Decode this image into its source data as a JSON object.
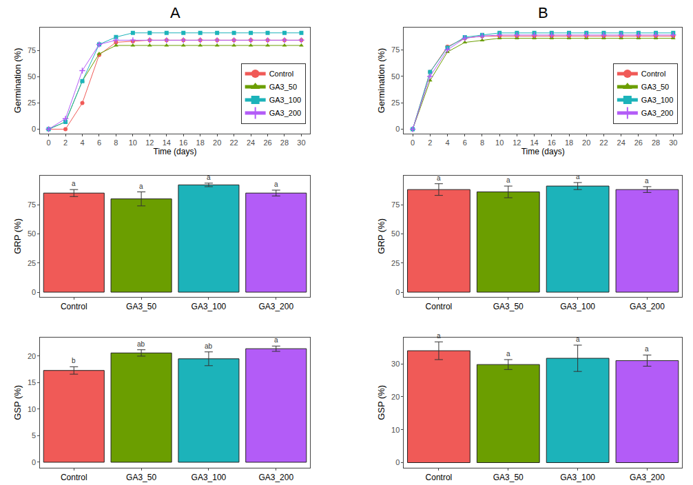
{
  "chart_data": [
    {
      "type": "line",
      "title": "A",
      "x_label": "Time (days)",
      "y_label": "Germination (%)",
      "x": [
        0,
        2,
        4,
        6,
        8,
        10,
        12,
        14,
        16,
        18,
        20,
        22,
        24,
        26,
        28,
        30
      ],
      "xlim": [
        -1,
        31
      ],
      "xticks": [
        0,
        2,
        4,
        6,
        8,
        10,
        12,
        14,
        16,
        18,
        20,
        22,
        24,
        26,
        28,
        30
      ],
      "ylim": [
        -4,
        97
      ],
      "yticks": [
        0,
        25,
        50,
        75
      ],
      "grid": false,
      "legend": "lower right",
      "series": [
        {
          "name": "Control",
          "color": "#F05A57",
          "marker": "circle",
          "values": [
            0,
            0,
            25,
            71,
            83,
            84,
            85,
            85,
            85,
            85,
            85,
            85,
            85,
            85,
            85,
            85
          ]
        },
        {
          "name": "GA3_50",
          "color": "#6B9E00",
          "marker": "triangle",
          "values": [
            0,
            7,
            46,
            72,
            80,
            80,
            80,
            80,
            80,
            80,
            80,
            80,
            80,
            80,
            80,
            80
          ]
        },
        {
          "name": "GA3_100",
          "color": "#1CB3BA",
          "marker": "square",
          "values": [
            0,
            7,
            46,
            81,
            88,
            92,
            92,
            92,
            92,
            92,
            92,
            92,
            92,
            92,
            92,
            92
          ]
        },
        {
          "name": "GA3_200",
          "color": "#B35CF7",
          "marker": "cross",
          "values": [
            0,
            10,
            56,
            81,
            85,
            85,
            85,
            85,
            85,
            85,
            85,
            85,
            85,
            85,
            85,
            85
          ]
        }
      ]
    },
    {
      "type": "bar",
      "y_label": "GRP (%)",
      "categories": [
        "Control",
        "GA3_50",
        "GA3_100",
        "GA3_200"
      ],
      "values": [
        85,
        80,
        92,
        85
      ],
      "errors": [
        3,
        6,
        1.5,
        2.5
      ],
      "letters": [
        "a",
        "a",
        "a",
        "a"
      ],
      "colors": [
        "#F05A57",
        "#6B9E00",
        "#1CB3BA",
        "#B35CF7"
      ],
      "ylim": [
        -4,
        100
      ],
      "yticks": [
        0,
        25,
        50,
        75
      ],
      "grid": false
    },
    {
      "type": "bar",
      "y_label": "GSP (%)",
      "categories": [
        "Control",
        "GA3_50",
        "GA3_100",
        "GA3_200"
      ],
      "values": [
        17.3,
        20.6,
        19.5,
        21.4
      ],
      "errors": [
        0.7,
        0.6,
        1.3,
        0.5
      ],
      "letters": [
        "b",
        "ab",
        "ab",
        "a"
      ],
      "colors": [
        "#F05A57",
        "#6B9E00",
        "#1CB3BA",
        "#B35CF7"
      ],
      "ylim": [
        -1,
        23.5
      ],
      "yticks": [
        0,
        5,
        10,
        15,
        20
      ],
      "grid": false
    },
    {
      "type": "line",
      "title": "B",
      "x_label": "Time (days)",
      "y_label": "Germination (%)",
      "x": [
        0,
        2,
        4,
        6,
        8,
        10,
        12,
        14,
        16,
        18,
        20,
        22,
        24,
        26,
        28,
        30
      ],
      "xlim": [
        -1,
        31
      ],
      "xticks": [
        0,
        2,
        4,
        6,
        8,
        10,
        12,
        14,
        16,
        18,
        20,
        22,
        24,
        26,
        28,
        30
      ],
      "ylim": [
        -4,
        96
      ],
      "yticks": [
        0,
        25,
        50,
        75
      ],
      "grid": false,
      "legend": "lower right",
      "series": [
        {
          "name": "Control",
          "color": "#F05A57",
          "marker": "circle",
          "values": [
            0,
            54,
            78,
            86,
            88,
            88,
            88,
            88,
            88,
            88,
            88,
            88,
            88,
            88,
            88,
            88
          ]
        },
        {
          "name": "GA3_50",
          "color": "#6B9E00",
          "marker": "triangle",
          "values": [
            0,
            46,
            73,
            82,
            84,
            86,
            86,
            86,
            86,
            86,
            86,
            86,
            86,
            86,
            86,
            86
          ]
        },
        {
          "name": "GA3_100",
          "color": "#1CB3BA",
          "marker": "square",
          "values": [
            0,
            54,
            77,
            87,
            89,
            91,
            91,
            91,
            91,
            91,
            91,
            91,
            91,
            91,
            91,
            91
          ]
        },
        {
          "name": "GA3_200",
          "color": "#B35CF7",
          "marker": "cross",
          "values": [
            0,
            50,
            75,
            86,
            88,
            89,
            89,
            89,
            89,
            89,
            89,
            89,
            89,
            89,
            89,
            89
          ]
        }
      ]
    },
    {
      "type": "bar",
      "y_label": "GRP (%)",
      "categories": [
        "Control",
        "GA3_50",
        "GA3_100",
        "GA3_200"
      ],
      "values": [
        88,
        86,
        91,
        88
      ],
      "errors": [
        5,
        5,
        3,
        2.5
      ],
      "letters": [
        "a",
        "a",
        "a",
        "a"
      ],
      "colors": [
        "#F05A57",
        "#6B9E00",
        "#1CB3BA",
        "#B35CF7"
      ],
      "ylim": [
        -4,
        100
      ],
      "yticks": [
        0,
        25,
        50,
        75
      ],
      "grid": false
    },
    {
      "type": "bar",
      "y_label": "GSP (%)",
      "categories": [
        "Control",
        "GA3_50",
        "GA3_100",
        "GA3_200"
      ],
      "values": [
        34,
        29.8,
        31.7,
        31
      ],
      "errors": [
        2.7,
        1.5,
        4,
        1.7
      ],
      "letters": [
        "a",
        "a",
        "a",
        "a"
      ],
      "colors": [
        "#F05A57",
        "#6B9E00",
        "#1CB3BA",
        "#B35CF7"
      ],
      "ylim": [
        -1.5,
        38
      ],
      "yticks": [
        0,
        10,
        20,
        30
      ],
      "grid": false
    }
  ]
}
